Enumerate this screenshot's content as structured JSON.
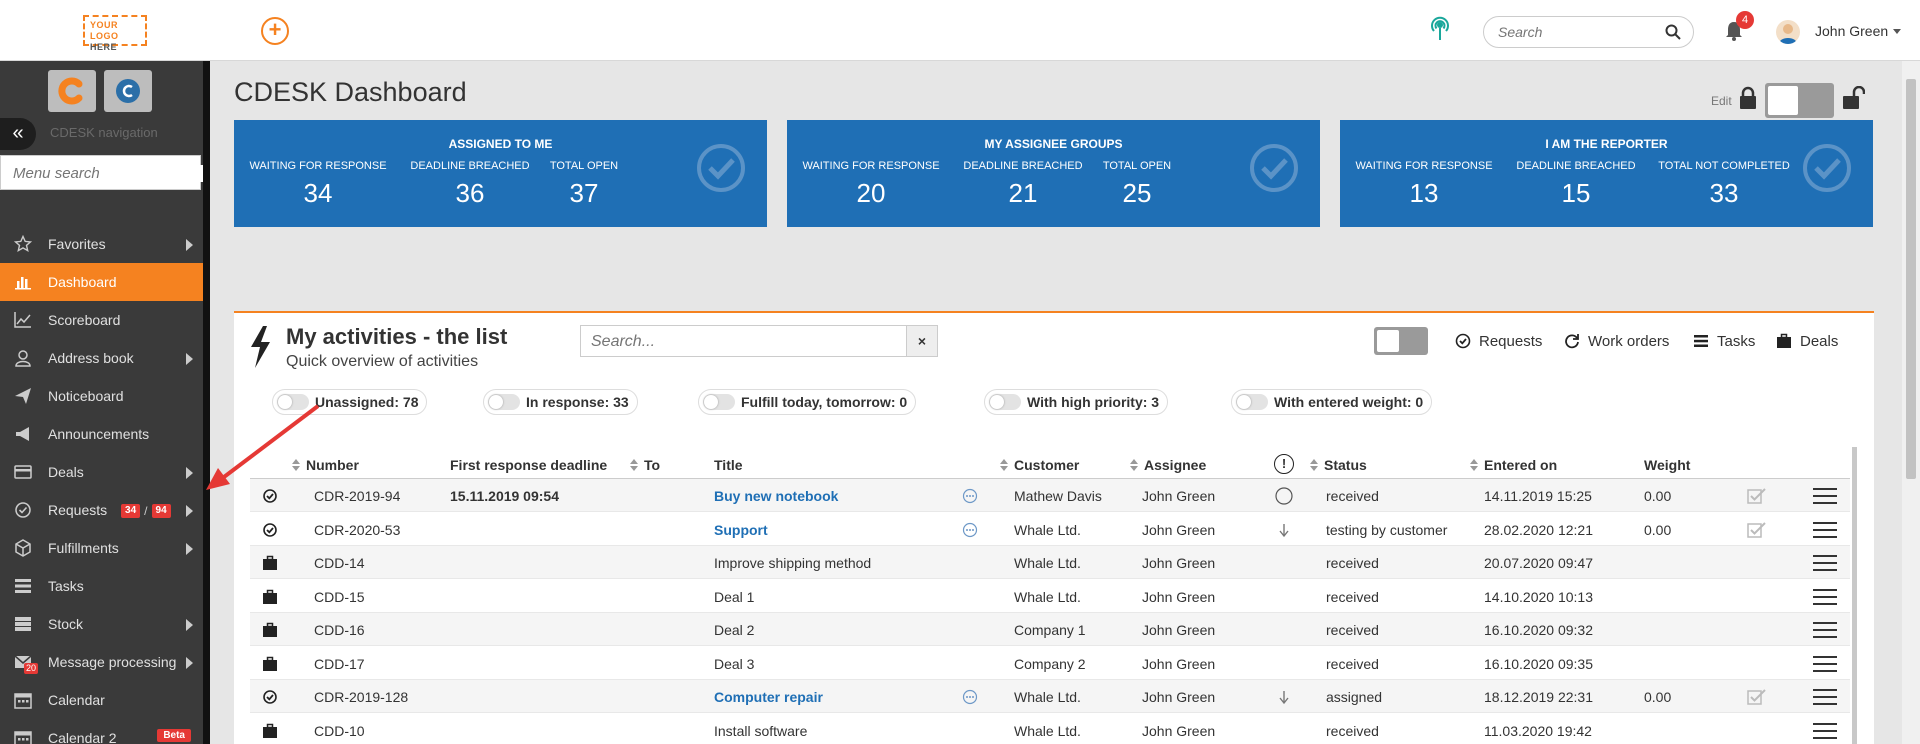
{
  "topbar": {
    "logo_line1": "YOUR LOGO",
    "logo_line2": "HERE",
    "search_placeholder": "Search",
    "notification_count": "4",
    "user_name": "John Green"
  },
  "sidebar": {
    "nav_label": "CDESK navigation",
    "menu_search_placeholder": "Menu search",
    "items": [
      {
        "label": "Favorites",
        "icon": "star-icon"
      },
      {
        "label": "Dashboard",
        "icon": "bar-chart-icon"
      },
      {
        "label": "Scoreboard",
        "icon": "line-chart-icon"
      },
      {
        "label": "Address book",
        "icon": "user-icon"
      },
      {
        "label": "Noticeboard",
        "icon": "paper-plane-icon"
      },
      {
        "label": "Announcements",
        "icon": "megaphone-icon"
      },
      {
        "label": "Deals",
        "icon": "credit-card-icon"
      },
      {
        "label": "Requests",
        "icon": "check-circle-icon",
        "badge_a": "34",
        "badge_sep": "/",
        "badge_b": "94"
      },
      {
        "label": "Fulfillments",
        "icon": "cube-icon"
      },
      {
        "label": "Tasks",
        "icon": "tasks-icon"
      },
      {
        "label": "Stock",
        "icon": "stock-icon"
      },
      {
        "label": "Message processing",
        "icon": "envelope-icon",
        "badge": "20"
      },
      {
        "label": "Calendar",
        "icon": "calendar-icon"
      },
      {
        "label": "Calendar 2",
        "icon": "calendar-icon",
        "badge": "Beta"
      }
    ],
    "colors": {
      "active": "#f58220",
      "bg": "#3a3a3a"
    }
  },
  "main": {
    "title": "CDESK Dashboard",
    "edit_label": "Edit",
    "cards": [
      {
        "title": "ASSIGNED TO ME",
        "stats": [
          {
            "label": "WAITING FOR RESPONSE",
            "value": "34"
          },
          {
            "label": "DEADLINE BREACHED",
            "value": "36"
          },
          {
            "label": "TOTAL OPEN",
            "value": "37"
          }
        ]
      },
      {
        "title": "MY ASSIGNEE GROUPS",
        "stats": [
          {
            "label": "WAITING FOR RESPONSE",
            "value": "20"
          },
          {
            "label": "DEADLINE BREACHED",
            "value": "21"
          },
          {
            "label": "TOTAL OPEN",
            "value": "25"
          }
        ]
      },
      {
        "title": "I AM THE REPORTER",
        "stats": [
          {
            "label": "WAITING FOR RESPONSE",
            "value": "13"
          },
          {
            "label": "DEADLINE BREACHED",
            "value": "15"
          },
          {
            "label": "TOTAL NOT COMPLETED",
            "value": "33"
          }
        ]
      }
    ],
    "card_color": "#1f6fb5"
  },
  "activities": {
    "title": "My activities - the list",
    "subtitle": "Quick overview of activities",
    "search_placeholder": "Search...",
    "clear_label": "×",
    "type_filters": [
      {
        "label": "Requests",
        "icon": "check-circle-icon"
      },
      {
        "label": "Work orders",
        "icon": "refresh-icon"
      },
      {
        "label": "Tasks",
        "icon": "tasks-icon"
      },
      {
        "label": "Deals",
        "icon": "briefcase-icon"
      }
    ],
    "quick_filters": [
      "Unassigned: 78",
      "In response: 33",
      "Fulfill today, tomorrow: 0",
      "With high priority: 3",
      "With entered weight: 0"
    ],
    "columns": {
      "number": "Number",
      "deadline": "First response deadline",
      "to": "To",
      "title": "Title",
      "customer": "Customer",
      "assignee": "Assignee",
      "priority": "!",
      "status": "Status",
      "entered": "Entered on",
      "weight": "Weight"
    },
    "rows": [
      {
        "type": "request",
        "number": "CDR-2019-94",
        "deadline": "15.11.2019 09:54",
        "title": "Buy new notebook",
        "link": true,
        "customer": "Mathew Davis",
        "assignee": "John Green",
        "priority": "circle",
        "status": "received",
        "entered": "14.11.2019 15:25",
        "weight": "0.00",
        "check": true
      },
      {
        "type": "request",
        "number": "CDR-2020-53",
        "deadline": "",
        "title": "Support",
        "link": true,
        "customer": "Whale Ltd.",
        "assignee": "John Green",
        "priority": "down",
        "status": "testing by customer",
        "entered": "28.02.2020 12:21",
        "weight": "0.00",
        "check": true
      },
      {
        "type": "deal",
        "number": "CDD-14",
        "deadline": "",
        "title": "Improve shipping method",
        "link": false,
        "customer": "Whale Ltd.",
        "assignee": "John Green",
        "priority": "",
        "status": "received",
        "entered": "20.07.2020 09:47",
        "weight": "",
        "check": false
      },
      {
        "type": "deal",
        "number": "CDD-15",
        "deadline": "",
        "title": "Deal 1",
        "link": false,
        "customer": "Whale Ltd.",
        "assignee": "John Green",
        "priority": "",
        "status": "received",
        "entered": "14.10.2020 10:13",
        "weight": "",
        "check": false
      },
      {
        "type": "deal",
        "number": "CDD-16",
        "deadline": "",
        "title": "Deal 2",
        "link": false,
        "customer": "Company 1",
        "assignee": "John Green",
        "priority": "",
        "status": "received",
        "entered": "16.10.2020 09:32",
        "weight": "",
        "check": false
      },
      {
        "type": "deal",
        "number": "CDD-17",
        "deadline": "",
        "title": "Deal 3",
        "link": false,
        "customer": "Company 2",
        "assignee": "John Green",
        "priority": "",
        "status": "received",
        "entered": "16.10.2020 09:35",
        "weight": "",
        "check": false
      },
      {
        "type": "request",
        "number": "CDR-2019-128",
        "deadline": "",
        "title": "Computer repair",
        "link": true,
        "customer": "Whale Ltd.",
        "assignee": "John Green",
        "priority": "down",
        "status": "assigned",
        "entered": "18.12.2019 22:31",
        "weight": "0.00",
        "check": true
      },
      {
        "type": "deal",
        "number": "CDD-10",
        "deadline": "",
        "title": "Install software",
        "link": false,
        "customer": "Whale Ltd.",
        "assignee": "John Green",
        "priority": "",
        "status": "received",
        "entered": "11.03.2020 19:42",
        "weight": "",
        "check": false
      }
    ]
  }
}
